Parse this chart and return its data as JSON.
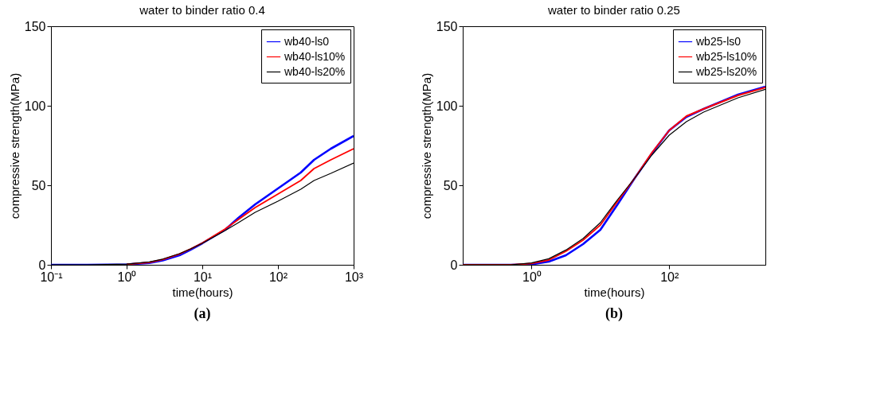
{
  "chart_data": [
    {
      "type": "line",
      "title": "water to binder ratio 0.4",
      "xlabel": "time(hours)",
      "ylabel": "compressive strength(MPa)",
      "log": "x",
      "grid": false,
      "legend": "top right",
      "line_style": "solid",
      "marker": "none",
      "xlim": [
        0.1,
        1000
      ],
      "xticks": [
        {
          "value": 0.1,
          "label": "10⁻¹"
        },
        {
          "value": 1,
          "label": "10⁰"
        },
        {
          "value": 10,
          "label": "10¹"
        },
        {
          "value": 100,
          "label": "10²"
        },
        {
          "value": 1000,
          "label": "10³"
        }
      ],
      "ylim": [
        0,
        150
      ],
      "yticks": [
        0,
        50,
        100,
        150
      ],
      "x": [
        0.1,
        0.3,
        1,
        2,
        3,
        5,
        7,
        10,
        20,
        30,
        50,
        100,
        200,
        300,
        500,
        1000
      ],
      "series": [
        {
          "name": "wb40-ls0",
          "color": "#0000ff",
          "values": [
            0,
            0,
            0.2,
            1.2,
            2.8,
            6,
            9.5,
            13.5,
            22,
            29.5,
            38,
            48,
            58,
            66,
            73,
            81
          ]
        },
        {
          "name": "wb40-ls10%",
          "color": "#ff0000",
          "values": [
            null,
            null,
            0.3,
            1.5,
            3.3,
            6.8,
            10,
            13.7,
            22.5,
            28.5,
            36,
            44.5,
            53,
            60.5,
            66,
            73
          ]
        },
        {
          "name": "wb40-ls20%",
          "color": "#000000",
          "values": [
            0,
            0,
            0.4,
            1.8,
            3.6,
            7,
            10,
            13.5,
            21.5,
            26.5,
            33,
            40,
            47.5,
            53,
            57.5,
            64
          ]
        }
      ],
      "annotations": [
        "(a)"
      ]
    },
    {
      "type": "line",
      "title": "water to binder ratio 0.25",
      "xlabel": "time(hours)",
      "ylabel": "compressive strength(MPa)",
      "log": "x",
      "grid": false,
      "legend": "top right",
      "line_style": "solid",
      "marker": "none",
      "xlim": [
        0.1,
        2500
      ],
      "xticks": [
        {
          "value": 1,
          "label": "10⁰"
        },
        {
          "value": 100,
          "label": "10²"
        }
      ],
      "ylim": [
        0,
        150
      ],
      "yticks": [
        0,
        50,
        100,
        150
      ],
      "x": [
        0.1,
        0.5,
        1,
        1.78,
        3.16,
        5.6,
        10,
        17.8,
        31.6,
        56,
        100,
        178,
        316,
        1000,
        2500
      ],
      "series": [
        {
          "name": "wb25-ls0",
          "color": "#0000ff",
          "values": [
            0,
            0,
            0.3,
            2,
            6,
            13,
            22,
            38,
            54.5,
            70,
            84.5,
            93,
            98,
            107,
            112
          ]
        },
        {
          "name": "wb25-ls10%",
          "color": "#ff0000",
          "values": [
            0,
            0,
            0.8,
            3,
            8.5,
            15.5,
            25,
            40,
            54.5,
            70.5,
            84.5,
            93.5,
            98,
            106.5,
            111.5
          ]
        },
        {
          "name": "wb25-ls20%",
          "color": "#000000",
          "values": [
            0,
            0,
            1.2,
            3.8,
            9.3,
            16.5,
            26.5,
            41,
            54.5,
            69,
            81.5,
            90,
            96,
            105,
            110.3
          ]
        }
      ],
      "annotations": [
        "(b)"
      ]
    }
  ]
}
